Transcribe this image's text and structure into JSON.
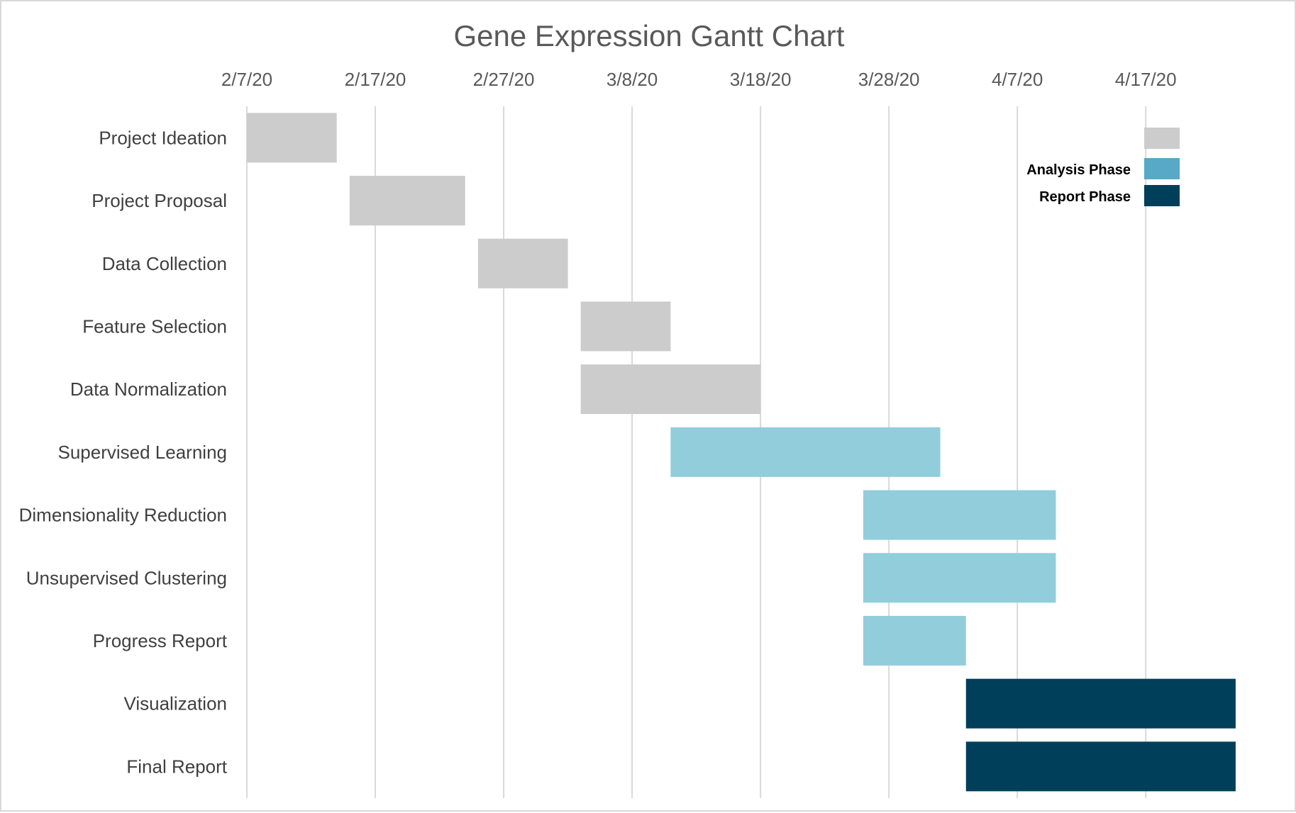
{
  "chart_data": {
    "type": "bar",
    "orientation": "horizontal",
    "subtype": "gantt",
    "title": "Gene Expression Gantt Chart",
    "x_axis": {
      "position": "top",
      "ticks": [
        "2/7/20",
        "2/17/20",
        "2/27/20",
        "3/8/20",
        "3/18/20",
        "3/28/20",
        "4/7/20",
        "4/17/20"
      ],
      "range": [
        "2020-02-07",
        "2020-04-25"
      ],
      "grid": true
    },
    "categories": [
      "Project Ideation",
      "Project Proposal",
      "Data Collection",
      "Feature Selection",
      "Data Normalization",
      "Supervised Learning",
      "Dimensionality Reduction",
      "Unsupervised Clustering",
      "Progress Report",
      "Visualization",
      "Final Report"
    ],
    "tasks": [
      {
        "task": "Project Ideation",
        "start": "2020-02-07",
        "end": "2020-02-14",
        "phase": 0
      },
      {
        "task": "Project Proposal",
        "start": "2020-02-15",
        "end": "2020-02-24",
        "phase": 0
      },
      {
        "task": "Data Collection",
        "start": "2020-02-25",
        "end": "2020-03-03",
        "phase": 0
      },
      {
        "task": "Feature Selection",
        "start": "2020-03-04",
        "end": "2020-03-11",
        "phase": 0
      },
      {
        "task": "Data Normalization",
        "start": "2020-03-04",
        "end": "2020-03-18",
        "phase": 0
      },
      {
        "task": "Supervised Learning",
        "start": "2020-03-11",
        "end": "2020-04-01",
        "phase": 1
      },
      {
        "task": "Dimensionality Reduction",
        "start": "2020-03-26",
        "end": "2020-04-10",
        "phase": 1
      },
      {
        "task": "Unsupervised Clustering",
        "start": "2020-03-26",
        "end": "2020-04-10",
        "phase": 1
      },
      {
        "task": "Progress Report",
        "start": "2020-03-26",
        "end": "2020-04-03",
        "phase": 1
      },
      {
        "task": "Visualization",
        "start": "2020-04-03",
        "end": "2020-04-24",
        "phase": 2
      },
      {
        "task": "Final Report",
        "start": "2020-04-03",
        "end": "2020-04-24",
        "phase": 2
      }
    ],
    "legend": {
      "placement": "top-right",
      "entries": [
        {
          "label": "",
          "color": "#cccccc"
        },
        {
          "label": "Analysis Phase",
          "color": "#57a9c6"
        },
        {
          "label": "Report Phase",
          "color": "#003f5a"
        }
      ]
    },
    "bar_colors": [
      "#cccccc",
      "#92cddc",
      "#003f5a"
    ],
    "grid_color": "#d9d9d9"
  }
}
